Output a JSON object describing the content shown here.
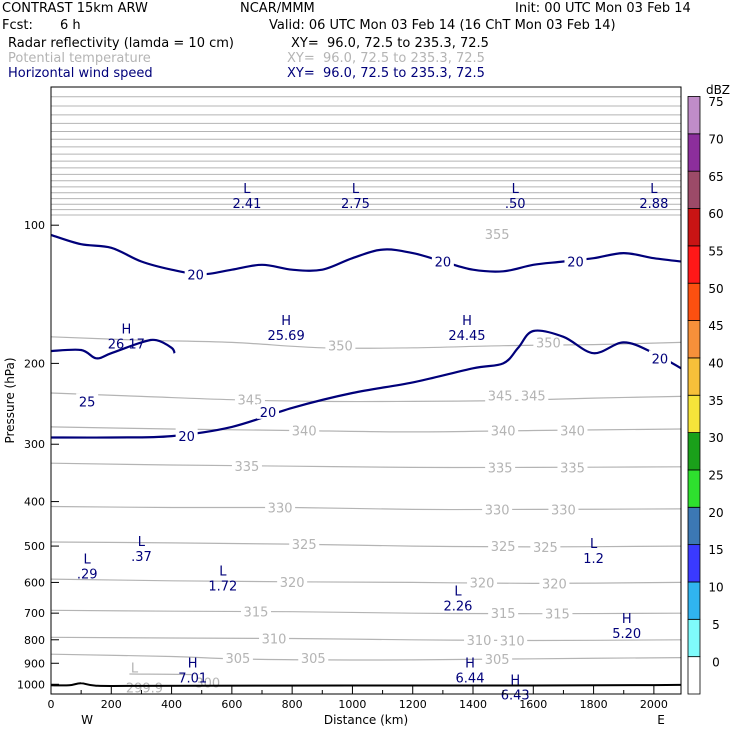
{
  "header": {
    "model": "CONTRAST 15km ARW",
    "org": "NCAR/MMM",
    "init": "Init: 00 UTC Mon 03 Feb 14",
    "fcst_label": "Fcst:",
    "fcst_value": "6 h",
    "valid": "Valid: 06 UTC Mon 03 Feb 14 (16 ChT Mon 03 Feb 14)",
    "fields": [
      {
        "name": "Radar reflectivity (lamda = 10 cm)",
        "xy": "XY=  96.0, 72.5 to 235.3, 72.5",
        "color": "#000000"
      },
      {
        "name": "Potential temperature",
        "xy": "XY=  96.0, 72.5 to 235.3, 72.5",
        "color": "#b4b4b4"
      },
      {
        "name": "Horizontal wind speed",
        "xy": "XY=  96.0, 72.5 to 235.3, 72.5",
        "color": "#00007a"
      }
    ]
  },
  "chart_data": {
    "type": "cross-section contour",
    "xlabel": "Distance (km)",
    "ylabel": "Pressure (hPa)",
    "xlim": [
      0,
      2090
    ],
    "ylim": [
      1050,
      50
    ],
    "x_ticks": [
      0,
      200,
      400,
      600,
      800,
      1000,
      1200,
      1400,
      1600,
      1800,
      2000
    ],
    "y_ticks": [
      100,
      200,
      300,
      400,
      500,
      600,
      700,
      800,
      900,
      1000
    ],
    "y_scale": "log-pressure",
    "x_end_labels": {
      "left": "W",
      "right": "E"
    },
    "colorbar": {
      "unit": "dBZ",
      "levels": [
        0,
        5,
        10,
        15,
        20,
        25,
        30,
        35,
        40,
        45,
        50,
        55,
        60,
        65,
        70,
        75
      ],
      "colors": [
        "#ffffff",
        "#7ffbfb",
        "#30b4f0",
        "#3a3aff",
        "#3c78b4",
        "#2ee02e",
        "#1aa01a",
        "#f6e43a",
        "#f7c03a",
        "#f7903a",
        "#fc5010",
        "#ff1818",
        "#c81414",
        "#9c4a68",
        "#8c2e9c",
        "#c08cc8"
      ]
    },
    "theta_contours": [
      {
        "label": "350",
        "points": [
          [
            0,
            175
          ],
          [
            300,
            178
          ],
          [
            600,
            180
          ],
          [
            900,
            185
          ],
          [
            1200,
            185
          ],
          [
            1500,
            183
          ],
          [
            1800,
            182
          ],
          [
            2090,
            180
          ]
        ],
        "label_at": [
          [
            960,
            183
          ],
          [
            1650,
            180
          ]
        ]
      },
      {
        "label": "345",
        "points": [
          [
            0,
            232
          ],
          [
            300,
            236
          ],
          [
            600,
            240
          ],
          [
            900,
            242
          ],
          [
            1200,
            242
          ],
          [
            1500,
            241
          ],
          [
            1800,
            238
          ],
          [
            2090,
            236
          ]
        ],
        "label_at": [
          [
            660,
            240
          ],
          [
            1490,
            235
          ],
          [
            1600,
            235
          ]
        ]
      },
      {
        "label": "340",
        "points": [
          [
            0,
            275
          ],
          [
            400,
            278
          ],
          [
            800,
            280
          ],
          [
            1200,
            282
          ],
          [
            1600,
            280
          ],
          [
            2090,
            278
          ]
        ],
        "label_at": [
          [
            840,
            280
          ],
          [
            1500,
            280
          ],
          [
            1730,
            280
          ]
        ]
      },
      {
        "label": "335",
        "points": [
          [
            0,
            330
          ],
          [
            400,
            333
          ],
          [
            800,
            335
          ],
          [
            1200,
            337
          ],
          [
            1600,
            337
          ],
          [
            2090,
            336
          ]
        ],
        "label_at": [
          [
            650,
            335
          ],
          [
            1490,
            337
          ],
          [
            1730,
            337
          ]
        ]
      },
      {
        "label": "330",
        "points": [
          [
            0,
            410
          ],
          [
            400,
            412
          ],
          [
            800,
            412
          ],
          [
            1200,
            416
          ],
          [
            1600,
            416
          ],
          [
            2090,
            415
          ]
        ],
        "label_at": [
          [
            760,
            412
          ],
          [
            1480,
            416
          ],
          [
            1700,
            416
          ]
        ]
      },
      {
        "label": "325",
        "points": [
          [
            0,
            490
          ],
          [
            400,
            492
          ],
          [
            800,
            495
          ],
          [
            1200,
            500
          ],
          [
            1600,
            502
          ],
          [
            2090,
            500
          ]
        ],
        "label_at": [
          [
            840,
            495
          ],
          [
            1500,
            500
          ],
          [
            1640,
            502
          ]
        ]
      },
      {
        "label": "320",
        "points": [
          [
            0,
            590
          ],
          [
            400,
            595
          ],
          [
            800,
            598
          ],
          [
            1200,
            600
          ],
          [
            1600,
            603
          ],
          [
            2090,
            600
          ]
        ],
        "label_at": [
          [
            800,
            598
          ],
          [
            1430,
            600
          ],
          [
            1670,
            603
          ]
        ]
      },
      {
        "label": "315",
        "points": [
          [
            0,
            690
          ],
          [
            400,
            693
          ],
          [
            800,
            695
          ],
          [
            1200,
            700
          ],
          [
            1600,
            702
          ],
          [
            2090,
            700
          ]
        ],
        "label_at": [
          [
            680,
            695
          ],
          [
            1500,
            700
          ],
          [
            1680,
            702
          ]
        ]
      },
      {
        "label": "310",
        "points": [
          [
            0,
            790
          ],
          [
            400,
            793
          ],
          [
            800,
            795
          ],
          [
            1200,
            800
          ],
          [
            1600,
            803
          ],
          [
            2090,
            800
          ]
        ],
        "label_at": [
          [
            740,
            795
          ],
          [
            1420,
            800
          ],
          [
            1530,
            803
          ]
        ]
      },
      {
        "label": "305",
        "points": [
          [
            0,
            860
          ],
          [
            400,
            870
          ],
          [
            600,
            880
          ],
          [
            900,
            885
          ],
          [
            1200,
            885
          ],
          [
            1600,
            880
          ],
          [
            2090,
            875
          ]
        ],
        "label_at": [
          [
            620,
            877
          ],
          [
            870,
            877
          ],
          [
            1480,
            880
          ]
        ]
      },
      {
        "label": "300",
        "points": [
          [
            260,
            950
          ],
          [
            520,
            955
          ],
          [
            540,
            985
          ]
        ],
        "label_at": [
          [
            520,
            990
          ]
        ]
      }
    ],
    "wind_contours": [
      {
        "label": "20",
        "points": [
          [
            0,
            105
          ],
          [
            100,
            110
          ],
          [
            200,
            112
          ],
          [
            300,
            120
          ],
          [
            400,
            125
          ],
          [
            500,
            128
          ],
          [
            600,
            125
          ],
          [
            700,
            122
          ],
          [
            800,
            125
          ],
          [
            900,
            125
          ],
          [
            1000,
            118
          ],
          [
            1100,
            113
          ],
          [
            1200,
            115
          ],
          [
            1300,
            120
          ],
          [
            1400,
            125
          ],
          [
            1500,
            126
          ],
          [
            1600,
            122
          ],
          [
            1700,
            120
          ],
          [
            1800,
            118
          ],
          [
            1900,
            115
          ],
          [
            2000,
            118
          ],
          [
            2090,
            120
          ]
        ],
        "label_at": [
          [
            480,
            128
          ],
          [
            1300,
            120
          ],
          [
            1740,
            120
          ]
        ]
      },
      {
        "label": "20",
        "points": [
          [
            0,
            290
          ],
          [
            200,
            290
          ],
          [
            400,
            288
          ],
          [
            600,
            275
          ],
          [
            800,
            250
          ],
          [
            1000,
            232
          ],
          [
            1200,
            220
          ],
          [
            1400,
            205
          ],
          [
            1500,
            200
          ],
          [
            1550,
            185
          ],
          [
            1600,
            170
          ],
          [
            1700,
            175
          ],
          [
            1800,
            190
          ],
          [
            1900,
            180
          ],
          [
            2000,
            190
          ],
          [
            2090,
            205
          ]
        ],
        "label_at": [
          [
            450,
            288
          ],
          [
            720,
            255
          ],
          [
            2020,
            195
          ]
        ]
      },
      {
        "label": "25",
        "points": [
          [
            0,
            188
          ],
          [
            100,
            187
          ],
          [
            150,
            195
          ],
          [
            200,
            190
          ],
          [
            300,
            180
          ],
          [
            350,
            178
          ],
          [
            400,
            185
          ],
          [
            410,
            190
          ]
        ],
        "label_at": [
          [
            120,
            242
          ]
        ]
      }
    ],
    "extrema": [
      {
        "type": "L",
        "value": "2.41",
        "x": 650,
        "p": 85
      },
      {
        "type": "L",
        "value": "2.75",
        "x": 1010,
        "p": 85
      },
      {
        "type": "L",
        "value": ".50",
        "x": 1540,
        "p": 85
      },
      {
        "type": "L",
        "value": "2.88",
        "x": 2000,
        "p": 85
      },
      {
        "type": "H",
        "value": "26.17",
        "x": 250,
        "p": 172
      },
      {
        "type": "H",
        "value": "25.69",
        "x": 780,
        "p": 165
      },
      {
        "type": "H",
        "value": "24.45",
        "x": 1380,
        "p": 165
      },
      {
        "type": "L",
        "value": ".37",
        "x": 300,
        "p": 500
      },
      {
        "type": "L",
        "value": ".29",
        "x": 120,
        "p": 545
      },
      {
        "type": "L",
        "value": "1.72",
        "x": 570,
        "p": 580
      },
      {
        "type": "L",
        "value": "1.2",
        "x": 1800,
        "p": 505
      },
      {
        "type": "L",
        "value": "2.26",
        "x": 1350,
        "p": 640
      },
      {
        "type": "H",
        "value": "5.20",
        "x": 1910,
        "p": 735
      },
      {
        "type": "H",
        "value": "7.01",
        "x": 470,
        "p": 920
      },
      {
        "type": "H",
        "value": "6.44",
        "x": 1390,
        "p": 920
      },
      {
        "type": "H",
        "value": "6.43",
        "x": 1540,
        "p": 1000
      }
    ],
    "theta_low": {
      "type": "L",
      "value": "299.9",
      "x": 310,
      "p": 992
    },
    "terrain": {
      "points": [
        [
          0,
          1005
        ],
        [
          60,
          1005
        ],
        [
          100,
          995
        ],
        [
          150,
          1007
        ],
        [
          300,
          1008
        ],
        [
          1000,
          1006
        ],
        [
          1600,
          1006
        ],
        [
          2000,
          1004
        ],
        [
          2090,
          1003
        ]
      ]
    },
    "upper_band": {
      "p_top": 50,
      "p_bottom": 95,
      "label": "355",
      "label_at": [
        [
          1480,
          105
        ]
      ]
    }
  }
}
